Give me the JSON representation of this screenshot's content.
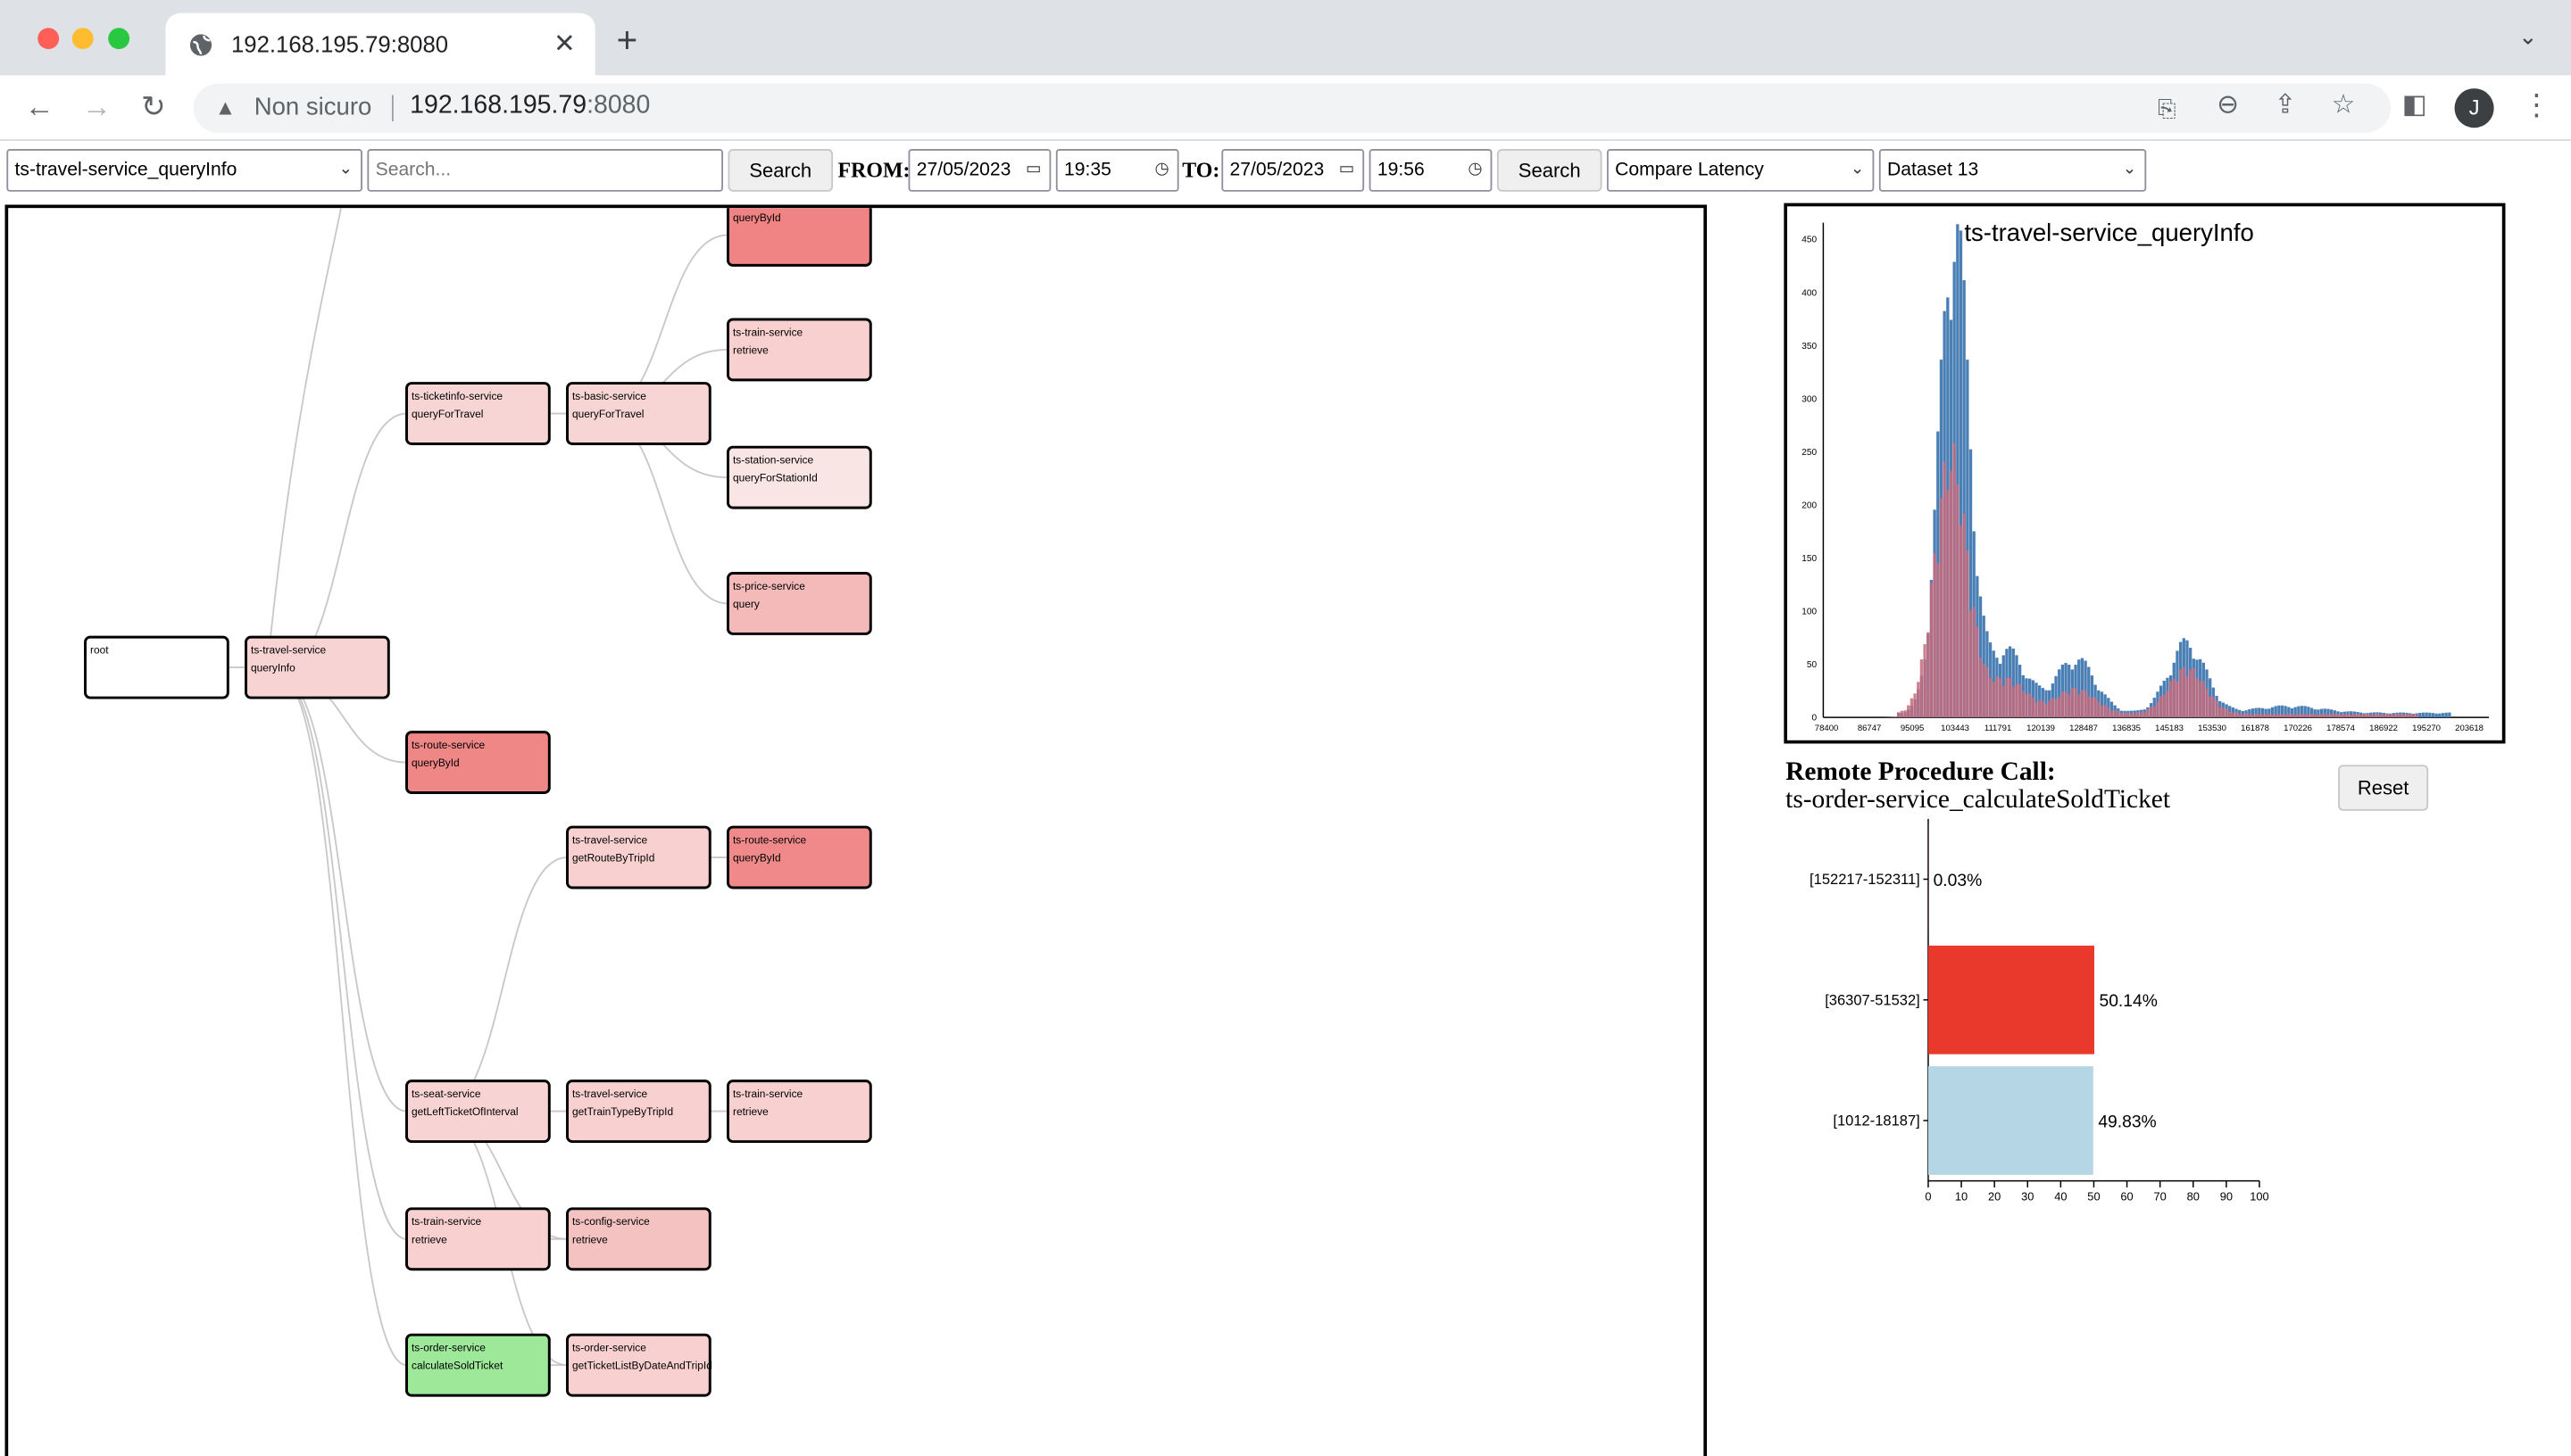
{
  "browser": {
    "tab_title": "192.168.195.79:8080",
    "security_label": "Non sicuro",
    "url_host": "192.168.195.79",
    "url_port": ":8080",
    "profile_initial": "J"
  },
  "controls": {
    "operation_select": "ts-travel-service_queryInfo",
    "search_placeholder": "Search...",
    "search_button": "Search",
    "from_label": "FROM:",
    "from_date": "27/05/2023",
    "from_time": "19:35",
    "to_label": "TO:",
    "to_date": "27/05/2023",
    "to_time": "19:56",
    "search_button_2": "Search",
    "mode_select": "Compare Latency",
    "dataset_select": "Dataset 13"
  },
  "graph": {
    "nodes": [
      {
        "id": "root",
        "service": "root",
        "op": "",
        "color": "#ffffff"
      },
      {
        "id": "travel",
        "service": "ts-travel-service",
        "op": "queryInfo",
        "color": "#f8d3d3"
      },
      {
        "id": "ticketinfo",
        "service": "ts-ticketinfo-service",
        "op": "queryForTravel",
        "color": "#f8d5d5"
      },
      {
        "id": "basic",
        "service": "ts-basic-service",
        "op": "queryForTravel",
        "color": "#f8d5d5"
      },
      {
        "id": "top",
        "service": "",
        "op": "queryById",
        "color": "#f08383"
      },
      {
        "id": "train1",
        "service": "ts-train-service",
        "op": "retrieve",
        "color": "#f8d0d0"
      },
      {
        "id": "station",
        "service": "ts-station-service",
        "op": "queryForStationId",
        "color": "#fae5e5"
      },
      {
        "id": "price",
        "service": "ts-price-service",
        "op": "query",
        "color": "#f4baba"
      },
      {
        "id": "route1",
        "service": "ts-route-service",
        "op": "queryById",
        "color": "#f08787"
      },
      {
        "id": "travel2",
        "service": "ts-travel-service",
        "op": "getRouteByTripId",
        "color": "#f8d0d0"
      },
      {
        "id": "route2",
        "service": "ts-route-service",
        "op": "queryById",
        "color": "#f08a8a"
      },
      {
        "id": "seat",
        "service": "ts-seat-service",
        "op": "getLeftTicketOfInterval",
        "color": "#f8d3d3"
      },
      {
        "id": "travel3",
        "service": "ts-travel-service",
        "op": "getTrainTypeByTripId",
        "color": "#f8d0d0"
      },
      {
        "id": "train2",
        "service": "ts-train-service",
        "op": "retrieve",
        "color": "#f8d0d0"
      },
      {
        "id": "train3",
        "service": "ts-train-service",
        "op": "retrieve",
        "color": "#f8d0d0"
      },
      {
        "id": "config",
        "service": "ts-config-service",
        "op": "retrieve",
        "color": "#f5c2c2"
      },
      {
        "id": "order1",
        "service": "ts-order-service",
        "op": "calculateSoldTicket",
        "color": "#9ee89a"
      },
      {
        "id": "order2",
        "service": "ts-order-service",
        "op": "getTicketListByDateAndTripId",
        "color": "#f8d0d0"
      }
    ]
  },
  "histogram": {
    "title": "ts-travel-service_queryInfo",
    "y_ticks": [
      "0",
      "50",
      "100",
      "150",
      "200",
      "250",
      "300",
      "350",
      "400",
      "450"
    ],
    "x_ticks": [
      "78400",
      "86747",
      "95095",
      "103443",
      "111791",
      "120139",
      "128487",
      "136835",
      "145183",
      "153530",
      "161878",
      "170226",
      "178574",
      "186922",
      "195270",
      "203618"
    ],
    "colors": {
      "series_a": "#4a7fb5",
      "series_b": "#c76a7a"
    }
  },
  "rpc": {
    "heading": "Remote Procedure Call:",
    "name": "ts-order-service_calculateSoldTicket",
    "reset_button": "Reset"
  },
  "chart_data": {
    "type": "bar",
    "orientation": "horizontal",
    "categories": [
      "[152217-152311]",
      "[36307-51532]",
      "[1012-18187]"
    ],
    "values": [
      0.03,
      50.14,
      49.83
    ],
    "value_labels": [
      "0.03%",
      "50.14%",
      "49.83%"
    ],
    "colors": [
      "#e8392c",
      "#e8392c",
      "#b5d7e5"
    ],
    "xlim": [
      0,
      100
    ],
    "x_ticks": [
      "0",
      "10",
      "20",
      "30",
      "40",
      "50",
      "60",
      "70",
      "80",
      "90",
      "100"
    ]
  }
}
